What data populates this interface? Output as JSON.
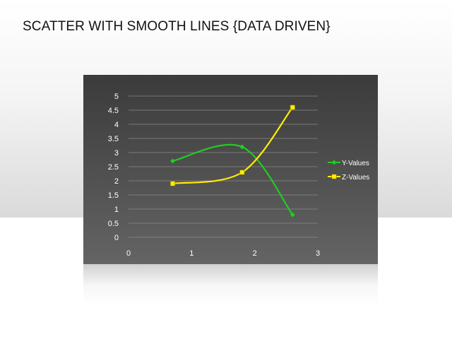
{
  "slide": {
    "title": "SCATTER WITH SMOOTH LINES {DATA DRIVEN}"
  },
  "chart_data": {
    "type": "scatter",
    "smooth_lines": true,
    "title": "",
    "xlabel": "",
    "ylabel": "",
    "xlim": [
      0,
      3
    ],
    "ylim": [
      0,
      5
    ],
    "x_ticks": [
      "0",
      "1",
      "2",
      "3"
    ],
    "y_ticks": [
      "0",
      "0.5",
      "1",
      "1.5",
      "2",
      "2.5",
      "3",
      "3.5",
      "4",
      "4.5",
      "5"
    ],
    "grid": "horizontal",
    "legend_position": "right",
    "series": [
      {
        "name": "Y-Values",
        "color": "#22cc22",
        "marker": "diamond",
        "points": [
          {
            "x": 0.7,
            "y": 2.7
          },
          {
            "x": 1.8,
            "y": 3.2
          },
          {
            "x": 2.6,
            "y": 0.8
          }
        ]
      },
      {
        "name": "Z-Values",
        "color": "#ffee00",
        "marker": "square",
        "points": [
          {
            "x": 0.7,
            "y": 1.9
          },
          {
            "x": 1.8,
            "y": 2.3
          },
          {
            "x": 2.6,
            "y": 4.6
          }
        ]
      }
    ]
  }
}
